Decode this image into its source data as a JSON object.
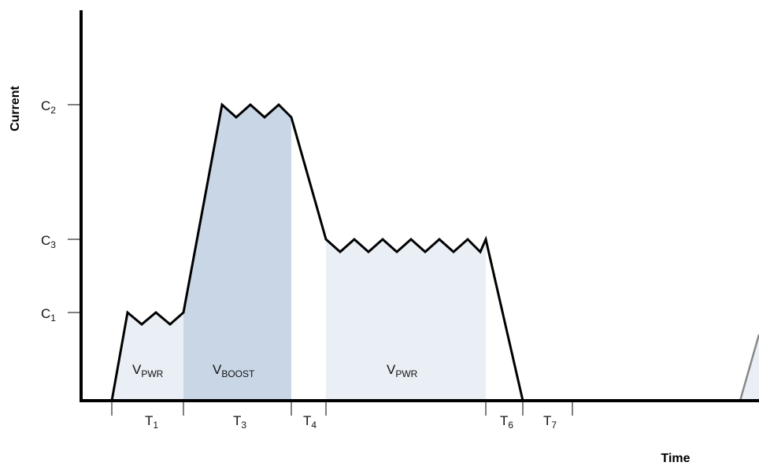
{
  "axes": {
    "y_title": "Current",
    "x_title": "Time"
  },
  "y_levels": [
    {
      "main": "C",
      "sub": "1"
    },
    {
      "main": "C",
      "sub": "2"
    },
    {
      "main": "C",
      "sub": "3"
    }
  ],
  "time_intervals": [
    {
      "main": "T",
      "sub": "1"
    },
    {
      "main": "T",
      "sub": "3"
    },
    {
      "main": "T",
      "sub": "4"
    },
    {
      "main": "T",
      "sub": "6"
    },
    {
      "main": "T",
      "sub": "7"
    }
  ],
  "regions": [
    {
      "main": "V",
      "sub": "PWR",
      "color": "#eaeff5"
    },
    {
      "main": "V",
      "sub": "BOOST",
      "color": "#c8d6e6"
    },
    {
      "main": "V",
      "sub": "PWR",
      "color": "#eaeff5"
    }
  ],
  "colors": {
    "waveform": "#000000",
    "restart_ramp": "#888888"
  }
}
